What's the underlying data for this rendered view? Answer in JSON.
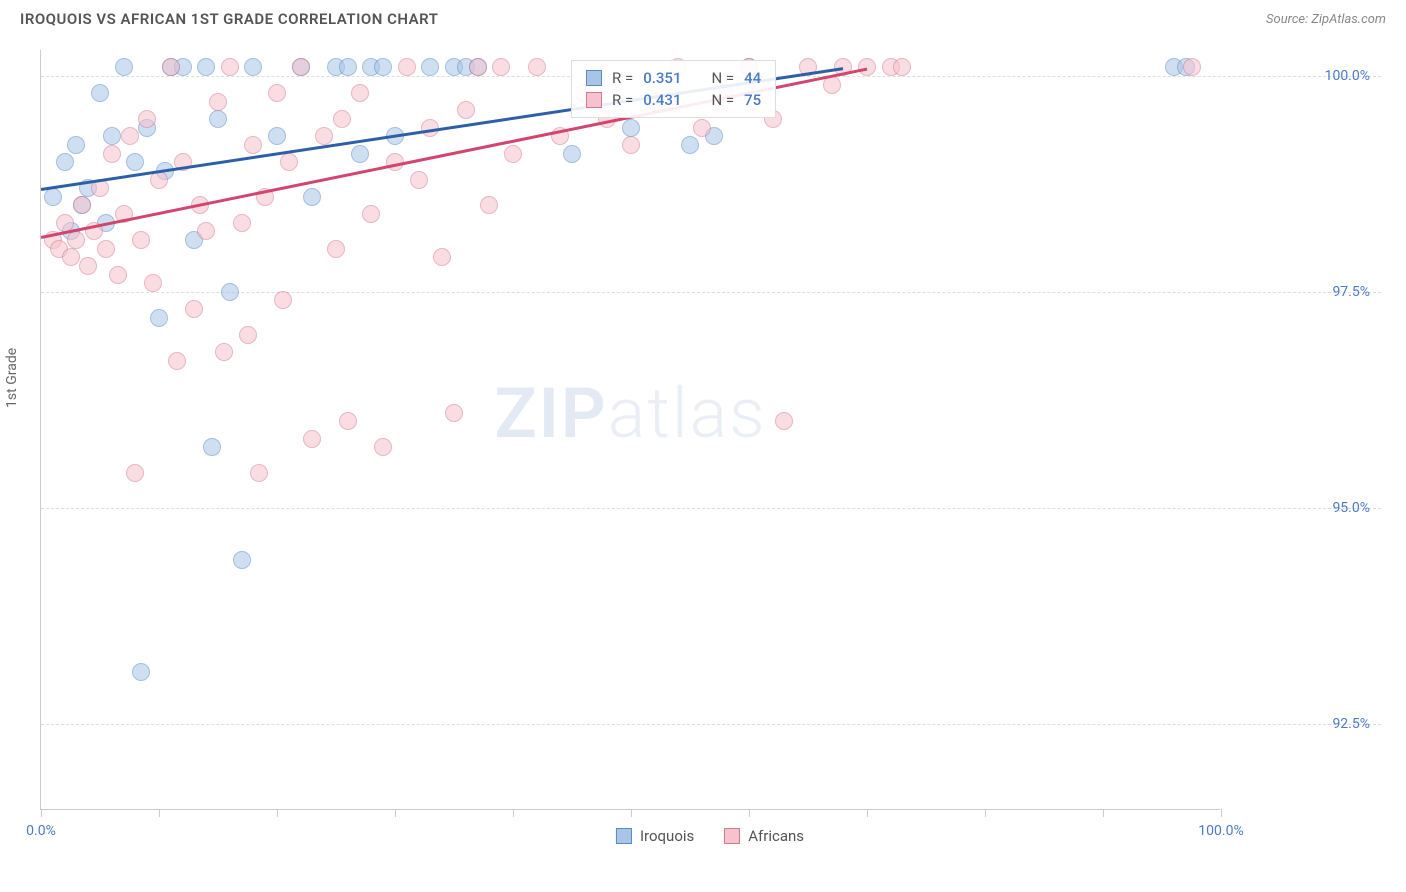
{
  "title": "IROQUOIS VS AFRICAN 1ST GRADE CORRELATION CHART",
  "source": "Source: ZipAtlas.com",
  "ylabel": "1st Grade",
  "watermark_bold": "ZIP",
  "watermark_light": "atlas",
  "chart": {
    "type": "scatter",
    "background_color": "#ffffff",
    "grid_color": "#dddddd",
    "axis_color": "#cccccc",
    "tick_label_color": "#4a7bc8",
    "tick_fontsize": 14,
    "xlim": [
      0,
      100
    ],
    "ylim": [
      91.5,
      100.3
    ],
    "xticks": [
      0,
      10,
      20,
      30,
      40,
      50,
      60,
      70,
      80,
      90,
      100
    ],
    "xtick_labels": {
      "0": "0.0%",
      "100": "100.0%"
    },
    "yticks": [
      92.5,
      95.0,
      97.5,
      100.0
    ],
    "ytick_labels": [
      "92.5%",
      "95.0%",
      "97.5%",
      "100.0%"
    ],
    "marker_radius": 9,
    "marker_opacity": 0.55,
    "series": [
      {
        "name": "Iroquois",
        "color_fill": "#a8c5e8",
        "color_stroke": "#5b8bc4",
        "R": "0.351",
        "N": "44",
        "trend": {
          "x1": 0,
          "y1": 98.7,
          "x2": 68,
          "y2": 100.1,
          "color": "#2d5fa8",
          "width": 2.5
        },
        "points": [
          [
            1,
            98.6
          ],
          [
            2,
            99.0
          ],
          [
            2.5,
            98.2
          ],
          [
            3,
            99.2
          ],
          [
            3.5,
            98.5
          ],
          [
            4,
            98.7
          ],
          [
            5,
            99.8
          ],
          [
            5.5,
            98.3
          ],
          [
            6,
            99.3
          ],
          [
            7,
            100.1
          ],
          [
            8,
            99.0
          ],
          [
            8.5,
            93.1
          ],
          [
            9,
            99.4
          ],
          [
            10,
            97.2
          ],
          [
            10.5,
            98.9
          ],
          [
            11,
            100.1
          ],
          [
            12,
            100.1
          ],
          [
            13,
            98.1
          ],
          [
            14,
            100.1
          ],
          [
            14.5,
            95.7
          ],
          [
            15,
            99.5
          ],
          [
            16,
            97.5
          ],
          [
            17,
            94.4
          ],
          [
            18,
            100.1
          ],
          [
            20,
            99.3
          ],
          [
            22,
            100.1
          ],
          [
            23,
            98.6
          ],
          [
            25,
            100.1
          ],
          [
            26,
            100.1
          ],
          [
            27,
            99.1
          ],
          [
            28,
            100.1
          ],
          [
            29,
            100.1
          ],
          [
            30,
            99.3
          ],
          [
            33,
            100.1
          ],
          [
            35,
            100.1
          ],
          [
            36,
            100.1
          ],
          [
            37,
            100.1
          ],
          [
            45,
            99.1
          ],
          [
            50,
            99.4
          ],
          [
            55,
            99.2
          ],
          [
            57,
            99.3
          ],
          [
            60,
            100.1
          ],
          [
            96,
            100.1
          ],
          [
            97,
            100.1
          ]
        ]
      },
      {
        "name": "Africans",
        "color_fill": "#f5c2cd",
        "color_stroke": "#d67a94",
        "R": "0.431",
        "N": "75",
        "trend": {
          "x1": 0,
          "y1": 98.15,
          "x2": 70,
          "y2": 100.1,
          "color": "#d1456f",
          "width": 2.5
        },
        "points": [
          [
            1,
            98.1
          ],
          [
            1.5,
            98.0
          ],
          [
            2,
            98.3
          ],
          [
            2.5,
            97.9
          ],
          [
            3,
            98.1
          ],
          [
            3.5,
            98.5
          ],
          [
            4,
            97.8
          ],
          [
            4.5,
            98.2
          ],
          [
            5,
            98.7
          ],
          [
            5.5,
            98.0
          ],
          [
            6,
            99.1
          ],
          [
            6.5,
            97.7
          ],
          [
            7,
            98.4
          ],
          [
            7.5,
            99.3
          ],
          [
            8,
            95.4
          ],
          [
            8.5,
            98.1
          ],
          [
            9,
            99.5
          ],
          [
            9.5,
            97.6
          ],
          [
            10,
            98.8
          ],
          [
            11,
            100.1
          ],
          [
            11.5,
            96.7
          ],
          [
            12,
            99.0
          ],
          [
            13,
            97.3
          ],
          [
            13.5,
            98.5
          ],
          [
            14,
            98.2
          ],
          [
            15,
            99.7
          ],
          [
            15.5,
            96.8
          ],
          [
            16,
            100.1
          ],
          [
            17,
            98.3
          ],
          [
            17.5,
            97.0
          ],
          [
            18,
            99.2
          ],
          [
            18.5,
            95.4
          ],
          [
            19,
            98.6
          ],
          [
            20,
            99.8
          ],
          [
            20.5,
            97.4
          ],
          [
            21,
            99.0
          ],
          [
            22,
            100.1
          ],
          [
            23,
            95.8
          ],
          [
            24,
            99.3
          ],
          [
            25,
            98.0
          ],
          [
            25.5,
            99.5
          ],
          [
            26,
            96.0
          ],
          [
            27,
            99.8
          ],
          [
            28,
            98.4
          ],
          [
            29,
            95.7
          ],
          [
            30,
            99.0
          ],
          [
            31,
            100.1
          ],
          [
            32,
            98.8
          ],
          [
            33,
            99.4
          ],
          [
            34,
            97.9
          ],
          [
            35,
            96.1
          ],
          [
            36,
            99.6
          ],
          [
            37,
            100.1
          ],
          [
            38,
            98.5
          ],
          [
            39,
            100.1
          ],
          [
            40,
            99.1
          ],
          [
            42,
            100.1
          ],
          [
            44,
            99.3
          ],
          [
            46,
            99.8
          ],
          [
            48,
            99.5
          ],
          [
            50,
            99.2
          ],
          [
            52,
            99.7
          ],
          [
            54,
            100.1
          ],
          [
            56,
            99.4
          ],
          [
            58,
            99.8
          ],
          [
            60,
            100.1
          ],
          [
            62,
            99.5
          ],
          [
            63,
            96.0
          ],
          [
            65,
            100.1
          ],
          [
            67,
            99.9
          ],
          [
            68,
            100.1
          ],
          [
            70,
            100.1
          ],
          [
            72,
            100.1
          ],
          [
            73,
            100.1
          ],
          [
            97.5,
            100.1
          ]
        ]
      }
    ]
  },
  "legend": {
    "series1": "Iroquois",
    "series2": "Africans"
  },
  "stats_labels": {
    "R": "R =",
    "N": "N ="
  }
}
